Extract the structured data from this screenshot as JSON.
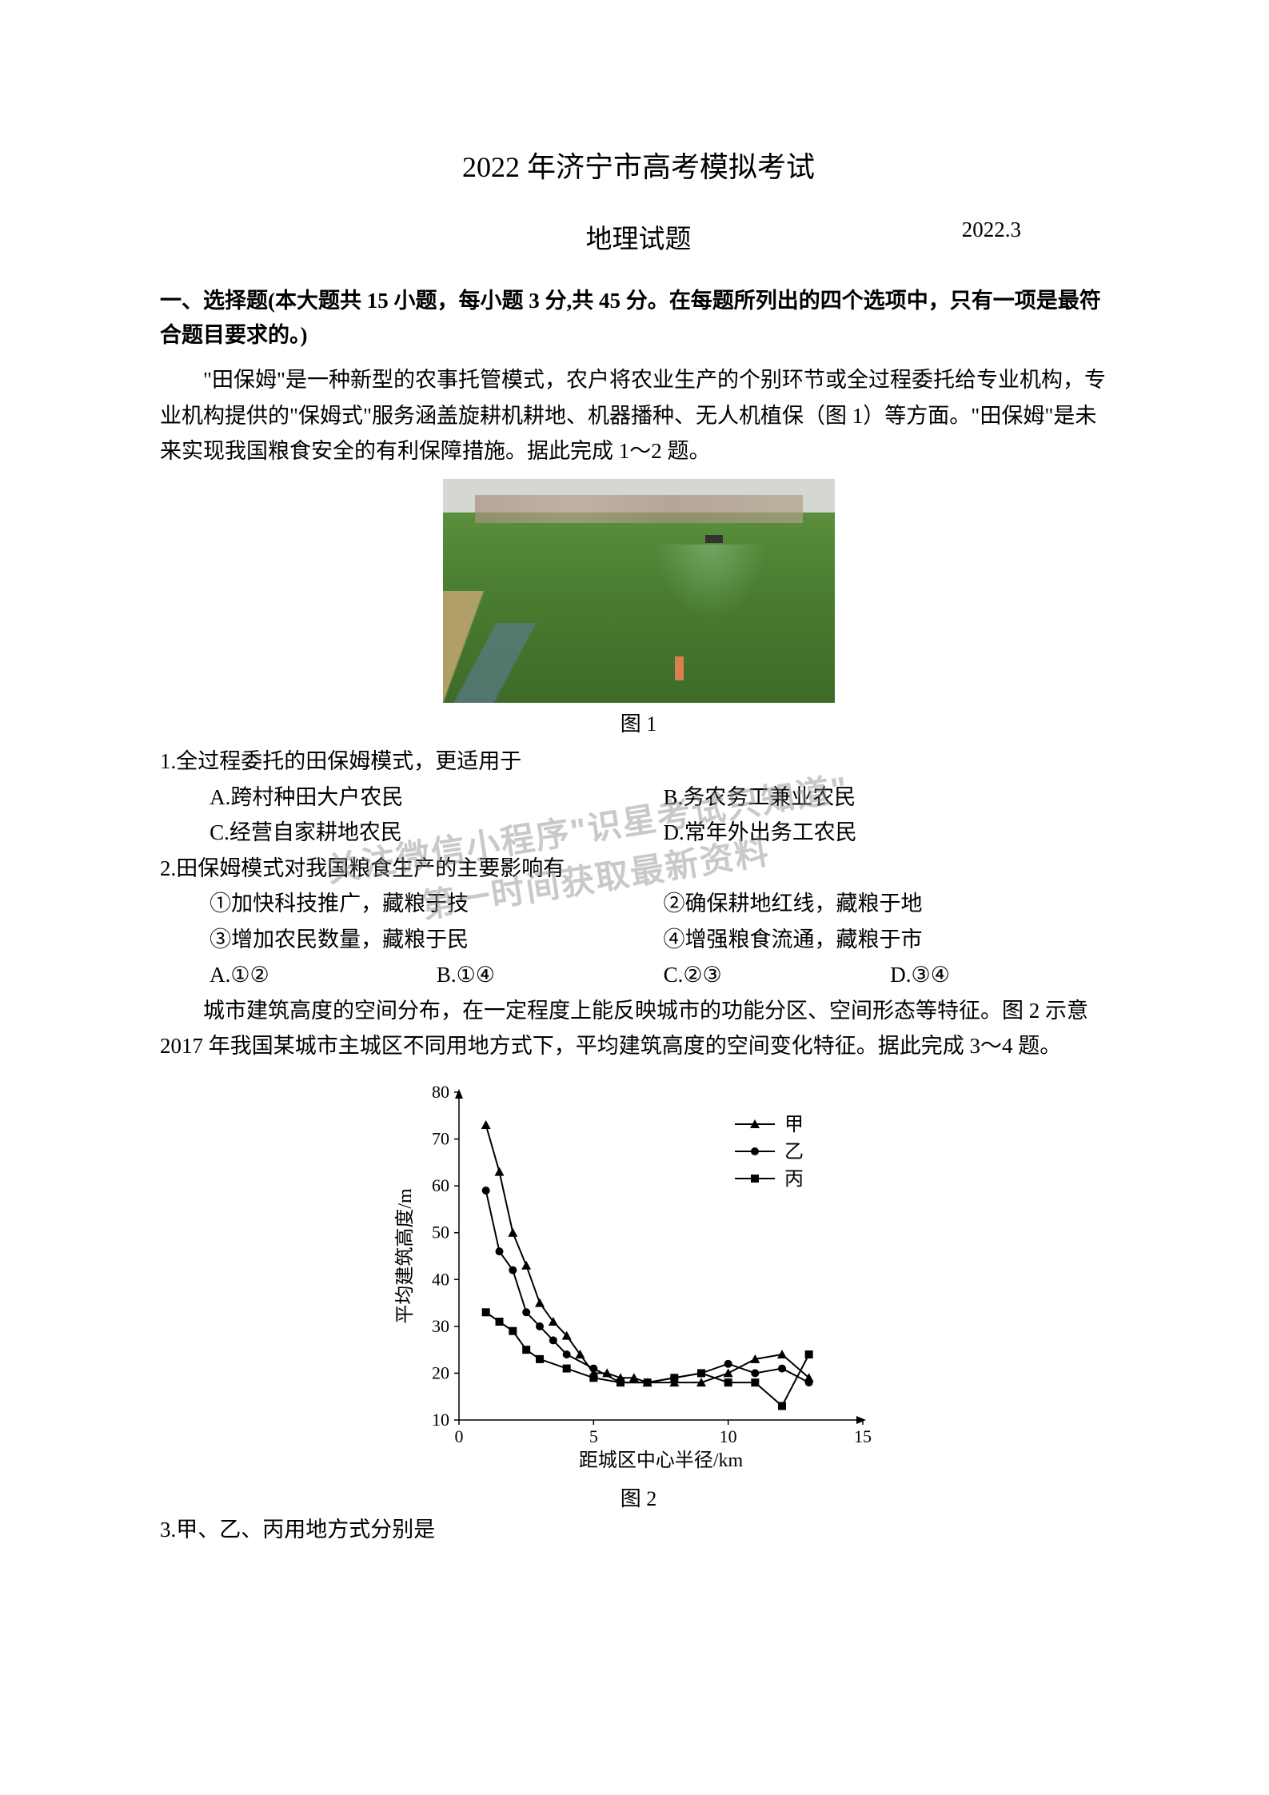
{
  "header": {
    "main_title": "2022 年济宁市高考模拟考试",
    "sub_title": "地理试题",
    "date": "2022.3"
  },
  "section1": {
    "title": "一、选择题(本大题共 15 小题，每小题 3 分,共 45 分。在每题所列出的四个选项中，只有一项是最符合题目要求的。)"
  },
  "passage1": {
    "text": "\"田保姆\"是一种新型的农事托管模式，农户将农业生产的个别环节或全过程委托给专业机构，专业机构提供的\"保姆式\"服务涵盖旋耕机耕地、机器播种、无人机植保（图 1）等方面。\"田保姆\"是未来实现我国粮食安全的有利保障措施。据此完成 1～2 题。"
  },
  "figure1": {
    "caption": "图 1"
  },
  "q1": {
    "stem": "1.全过程委托的田保姆模式，更适用于",
    "optA": "A.跨村种田大户农民",
    "optB": "B.务农务工兼业农民",
    "optC": "C.经营自家耕地农民",
    "optD": "D.常年外出务工农民"
  },
  "q2": {
    "stem": "2.田保姆模式对我国粮食生产的主要影响有",
    "st1": "①加快科技推广，藏粮于技",
    "st2": "②确保耕地红线，藏粮于地",
    "st3": "③增加农民数量，藏粮于民",
    "st4": "④增强粮食流通，藏粮于市",
    "optA": "A.①②",
    "optB": "B.①④",
    "optC": "C.②③",
    "optD": "D.③④"
  },
  "passage2": {
    "text": "城市建筑高度的空间分布，在一定程度上能反映城市的功能分区、空间形态等特征。图 2 示意 2017 年我国某城市主城区不同用地方式下，平均建筑高度的空间变化特征。据此完成 3～4 题。"
  },
  "chart": {
    "xlabel": "距城区中心半径/km",
    "ylabel": "平均建筑高度/m",
    "legend": {
      "jia": "甲",
      "yi": "乙",
      "bing": "丙"
    },
    "xlim": [
      0,
      15
    ],
    "ylim": [
      10,
      80
    ],
    "xtick_step": 5,
    "ytick_step": 10,
    "colors": {
      "axis": "#000000",
      "line": "#000000",
      "text": "#000000",
      "bg": "#ffffff"
    },
    "series_jia": {
      "marker": "triangle",
      "x": [
        1,
        1.5,
        2,
        2.5,
        3,
        3.5,
        4,
        4.5,
        5,
        5.5,
        6,
        6.5,
        7,
        8,
        9,
        10,
        11,
        12,
        13
      ],
      "y": [
        73,
        63,
        50,
        43,
        35,
        31,
        28,
        24,
        20,
        20,
        19,
        19,
        18,
        18,
        18,
        20,
        23,
        24,
        19
      ]
    },
    "series_yi": {
      "marker": "circle",
      "x": [
        1,
        1.5,
        2,
        2.5,
        3,
        3.5,
        4,
        5,
        6,
        7,
        8,
        9,
        10,
        11,
        12,
        13
      ],
      "y": [
        59,
        46,
        42,
        33,
        30,
        27,
        24,
        21,
        18,
        18,
        19,
        20,
        22,
        20,
        21,
        18
      ]
    },
    "series_bing": {
      "marker": "square",
      "x": [
        1,
        1.5,
        2,
        2.5,
        3,
        4,
        5,
        6,
        7,
        8,
        9,
        10,
        11,
        12,
        13
      ],
      "y": [
        33,
        31,
        29,
        25,
        23,
        21,
        19,
        18,
        18,
        19,
        20,
        18,
        18,
        13,
        24
      ]
    },
    "caption": "图 2"
  },
  "q3": {
    "stem": "3.甲、乙、丙用地方式分别是"
  },
  "watermark": {
    "line1": "关注微信小程序\"识星考试只知道\"",
    "line2": "第一时间获取最新资料"
  }
}
